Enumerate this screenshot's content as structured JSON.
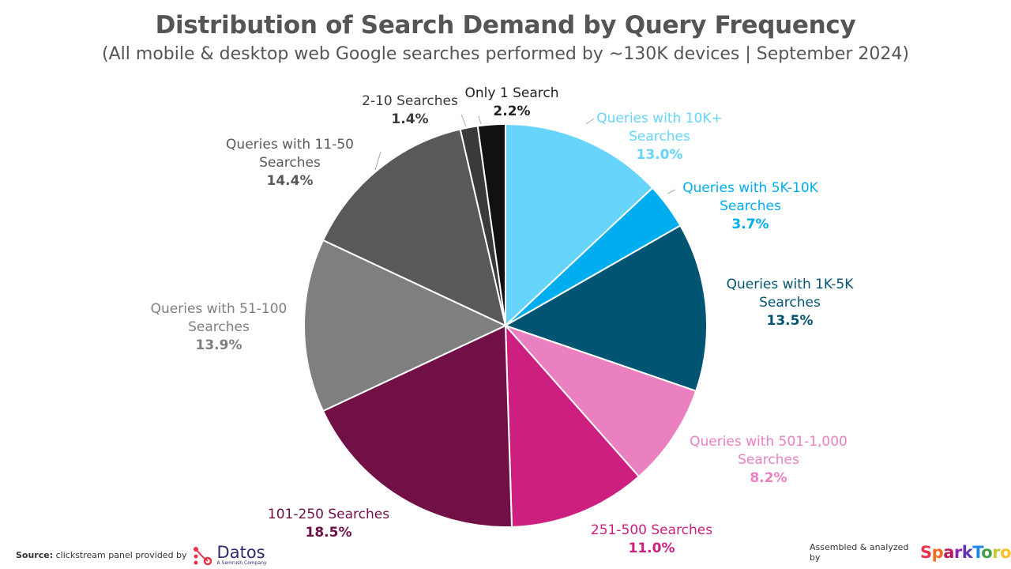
{
  "chart_data": {
    "type": "pie",
    "title": "Distribution of Search Demand by Query Frequency",
    "subtitle": "(All mobile & desktop web Google searches performed by ~130K devices | September 2024)",
    "start": "top",
    "direction": "clockwise",
    "slices": [
      {
        "label": "Queries with 10K+ Searches",
        "value": 13.0,
        "display": "13.0%",
        "color": "#67d5fb"
      },
      {
        "label": "Queries with 5K-10K Searches",
        "value": 3.7,
        "display": "3.7%",
        "color": "#00adef"
      },
      {
        "label": "Queries with 1K-5K Searches",
        "value": 13.5,
        "display": "13.5%",
        "color": "#025473"
      },
      {
        "label": "Queries with 501-1,000 Searches",
        "value": 8.2,
        "display": "8.2%",
        "color": "#ea80c0"
      },
      {
        "label": "251-500 Searches",
        "value": 11.0,
        "display": "11.0%",
        "color": "#cc1f80"
      },
      {
        "label": "101-250 Searches",
        "value": 18.5,
        "display": "18.5%",
        "color": "#701046"
      },
      {
        "label": "Queries with 51-100 Searches",
        "value": 13.9,
        "display": "13.9%",
        "color": "#7f7f7f"
      },
      {
        "label": "Queries with 11-50 Searches",
        "value": 14.4,
        "display": "14.4%",
        "color": "#595959"
      },
      {
        "label": "2-10 Searches",
        "value": 1.4,
        "display": "1.4%",
        "color": "#3a3a3a"
      },
      {
        "label": "Only 1 Search",
        "value": 2.2,
        "display": "2.2%",
        "color": "#111111"
      }
    ]
  },
  "footer": {
    "source_label": "Source:",
    "source_text": "clickstream panel provided by",
    "datos_name": "Datos",
    "datos_sub": "A Semrush Company",
    "assembled_text": "Assembled & analyzed by",
    "sparktoro": "SparkToro"
  }
}
